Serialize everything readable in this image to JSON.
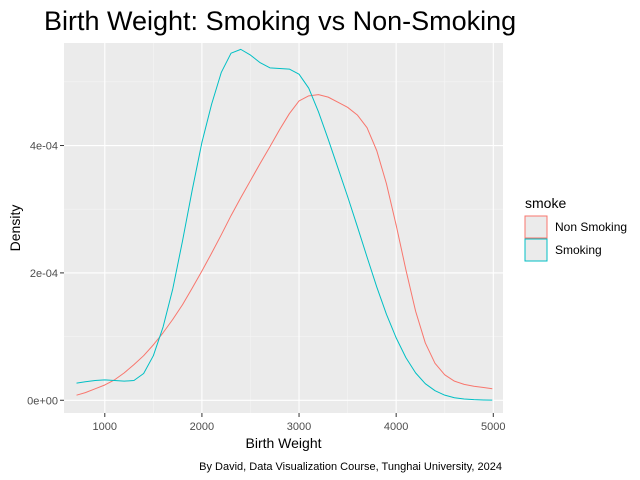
{
  "chart_data": {
    "type": "line",
    "title": "Birth Weight: Smoking vs Non-Smoking",
    "xlabel": "Birth Weight",
    "ylabel": "Density",
    "caption": "By David, Data Visualization Course, Tunghai University, 2024",
    "xlim": [
      580,
      5100
    ],
    "ylim": [
      -2e-05,
      0.000561
    ],
    "x_ticks": [
      1000,
      2000,
      3000,
      4000,
      5000
    ],
    "x_tick_labels": [
      "1000",
      "2000",
      "3000",
      "4000",
      "5000"
    ],
    "y_ticks": [
      0,
      0.0002,
      0.0004
    ],
    "y_tick_labels": [
      "0e+00",
      "2e-04",
      "4e-04"
    ],
    "grid": true,
    "legend": {
      "title": "smoke",
      "position": "right"
    },
    "series": [
      {
        "name": "Non Smoking",
        "color": "#F8766D",
        "x": [
          709,
          800,
          900,
          1000,
          1100,
          1200,
          1300,
          1400,
          1500,
          1600,
          1700,
          1800,
          1900,
          2000,
          2100,
          2200,
          2300,
          2400,
          2500,
          2600,
          2700,
          2800,
          2900,
          3000,
          3100,
          3200,
          3300,
          3400,
          3500,
          3600,
          3700,
          3800,
          3900,
          4000,
          4100,
          4200,
          4300,
          4400,
          4500,
          4600,
          4700,
          4800,
          4900,
          4990
        ],
        "y": [
          8e-06,
          1.2e-05,
          1.8e-05,
          2.4e-05,
          3.2e-05,
          4.3e-05,
          5.6e-05,
          7e-05,
          8.7e-05,
          0.000106,
          0.000127,
          0.00015,
          0.000176,
          0.000203,
          0.000231,
          0.00026,
          0.00029,
          0.000318,
          0.000345,
          0.000372,
          0.000398,
          0.000425,
          0.00045,
          0.00047,
          0.000478,
          0.00048,
          0.000476,
          0.000468,
          0.00046,
          0.000448,
          0.000428,
          0.000392,
          0.00034,
          0.000275,
          0.000205,
          0.00014,
          9e-05,
          5.8e-05,
          4e-05,
          3e-05,
          2.5e-05,
          2.2e-05,
          2e-05,
          1.8e-05
        ]
      },
      {
        "name": "Smoking",
        "color": "#00BFC4",
        "x": [
          709,
          800,
          900,
          1000,
          1100,
          1200,
          1300,
          1400,
          1500,
          1600,
          1700,
          1800,
          1900,
          2000,
          2100,
          2200,
          2300,
          2400,
          2500,
          2600,
          2700,
          2800,
          2900,
          3000,
          3100,
          3200,
          3300,
          3400,
          3500,
          3600,
          3700,
          3800,
          3900,
          4000,
          4100,
          4200,
          4300,
          4400,
          4500,
          4600,
          4700,
          4800,
          4900,
          4990
        ],
        "y": [
          2.7e-05,
          2.9e-05,
          3.1e-05,
          3.2e-05,
          3.1e-05,
          3e-05,
          3.1e-05,
          4.2e-05,
          7e-05,
          0.000115,
          0.000175,
          0.00025,
          0.00033,
          0.000405,
          0.000465,
          0.000515,
          0.000545,
          0.000551,
          0.000542,
          0.00053,
          0.000522,
          0.000521,
          0.00052,
          0.000512,
          0.00049,
          0.000453,
          0.00041,
          0.000365,
          0.00032,
          0.000273,
          0.000225,
          0.000178,
          0.000135,
          9.8e-05,
          6.7e-05,
          4.3e-05,
          2.6e-05,
          1.5e-05,
          8e-06,
          4e-06,
          2e-06,
          1e-06,
          5e-07,
          2e-07
        ]
      }
    ]
  }
}
